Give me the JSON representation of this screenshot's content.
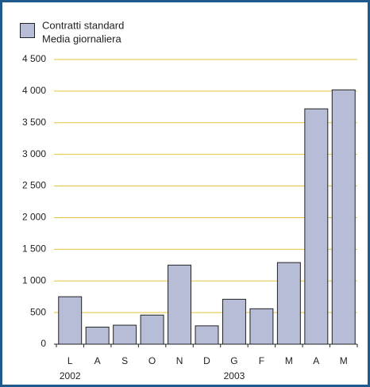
{
  "chart_data": {
    "type": "bar",
    "legend": [
      "Contratti standard",
      "Media giornaliera"
    ],
    "categories": [
      "L",
      "A",
      "S",
      "O",
      "N",
      "D",
      "G",
      "F",
      "M",
      "A",
      "M"
    ],
    "year_labels": [
      {
        "label": "2002",
        "category": 0
      },
      {
        "label": "2003",
        "category": 6
      }
    ],
    "values": [
      750,
      270,
      300,
      460,
      1250,
      290,
      710,
      560,
      1290,
      3720,
      4020
    ],
    "color": "#b7bdd7",
    "ylim": [
      0,
      4500
    ],
    "yticks": [
      0,
      {
        "value": 500,
        "label": "500"
      },
      {
        "value": 1000,
        "label": "1 000"
      },
      {
        "value": 1500,
        "label": "1 500"
      },
      {
        "value": 2000,
        "label": "2 000"
      },
      {
        "value": 2500,
        "label": "2 500"
      },
      {
        "value": 3000,
        "label": "3 000"
      },
      {
        "value": 3500,
        "label": "3 500"
      },
      {
        "value": 4000,
        "label": "4 000"
      },
      {
        "value": 4500,
        "label": "4 500"
      }
    ],
    "grid": true
  }
}
